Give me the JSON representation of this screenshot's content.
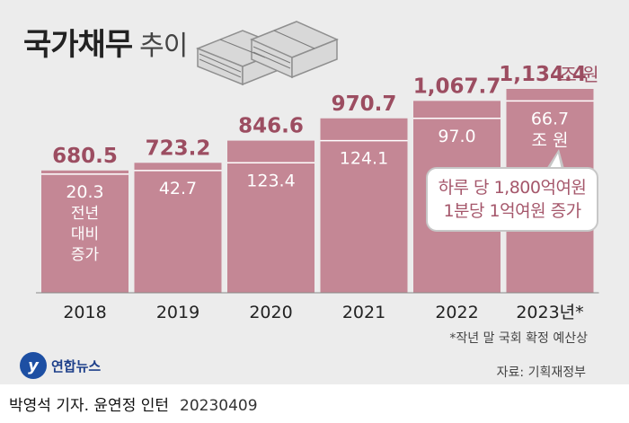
{
  "title": "국가채무",
  "subtitle": "추이",
  "unit_label": "조 원",
  "callout": {
    "line1": "하루 당 1,800억여원",
    "line2": "1분당 1억여원 증가"
  },
  "footnote": "*작년 말 국회 확정 예산상",
  "source": "자료: 기획재정부",
  "logo_text": "연합뉴스",
  "credit": "박영석 기자. 윤연정 인턴",
  "date": "20230409",
  "icons": [
    "money-stack-icon",
    "yonhap-logo-icon"
  ],
  "colors": {
    "bar": "#c48795",
    "bar_top": "#bd7c8b",
    "value_text": "#9c4d61",
    "bg": "#ececec"
  },
  "chart_data": {
    "type": "bar",
    "categories": [
      "2018",
      "2019",
      "2020",
      "2021",
      "2022",
      "2023년*"
    ],
    "values": [
      680.5,
      723.2,
      846.6,
      970.7,
      1067.7,
      1134.4
    ],
    "value_labels": [
      "680.5",
      "723.2",
      "846.6",
      "970.7",
      "1,067.7",
      "1,134.4"
    ],
    "increase": [
      20.3,
      42.7,
      123.4,
      124.1,
      97.0,
      66.7
    ],
    "increase_labels": [
      "20.3",
      "42.7",
      "123.4",
      "124.1",
      "97.0",
      "66.7"
    ],
    "increase_note_first": [
      "전년",
      "대비",
      "증가"
    ],
    "increase_note_last": "조 원",
    "title": "국가채무 추이",
    "ylabel": "",
    "xlabel": ""
  }
}
